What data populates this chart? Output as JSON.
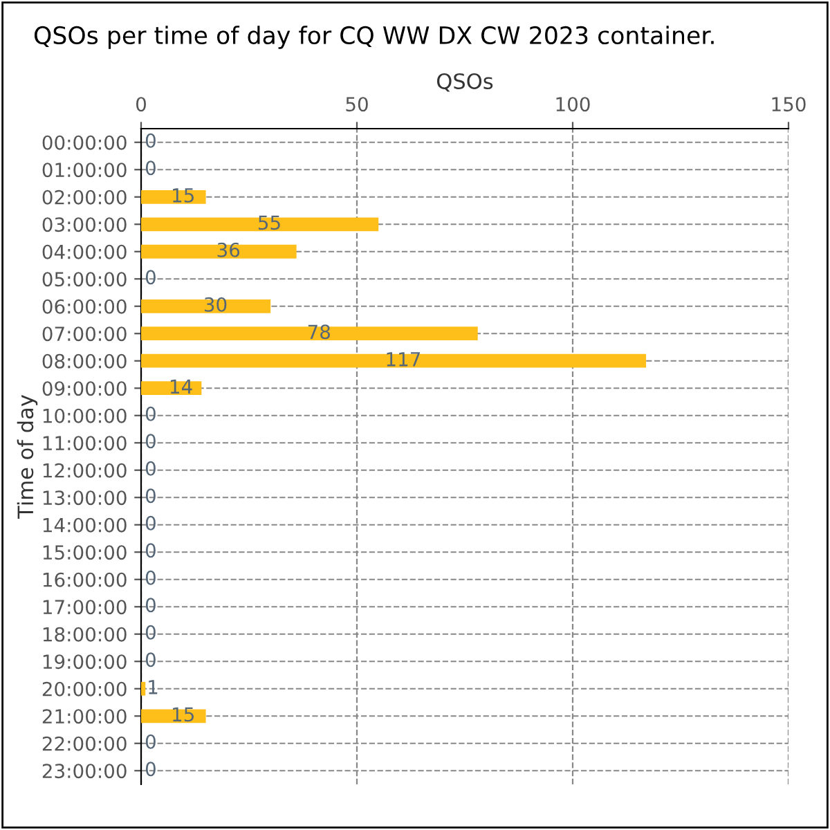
{
  "chart_data": {
    "type": "bar",
    "orientation": "horizontal",
    "title": "QSOs per time of day for CQ WW DX CW 2023 container.",
    "xlabel": "QSOs",
    "ylabel": "Time of day",
    "categories": [
      "00:00:00",
      "01:00:00",
      "02:00:00",
      "03:00:00",
      "04:00:00",
      "05:00:00",
      "06:00:00",
      "07:00:00",
      "08:00:00",
      "09:00:00",
      "10:00:00",
      "11:00:00",
      "12:00:00",
      "13:00:00",
      "14:00:00",
      "15:00:00",
      "16:00:00",
      "17:00:00",
      "18:00:00",
      "19:00:00",
      "20:00:00",
      "21:00:00",
      "22:00:00",
      "23:00:00"
    ],
    "values": [
      0,
      0,
      15,
      55,
      36,
      0,
      30,
      78,
      117,
      14,
      0,
      0,
      0,
      0,
      0,
      0,
      0,
      0,
      0,
      0,
      1,
      15,
      0,
      0
    ],
    "color": "#ffbf1a",
    "xlim": [
      0,
      150
    ],
    "xticks": [
      0,
      50,
      100,
      150
    ],
    "grid": true,
    "data_labels": true
  }
}
